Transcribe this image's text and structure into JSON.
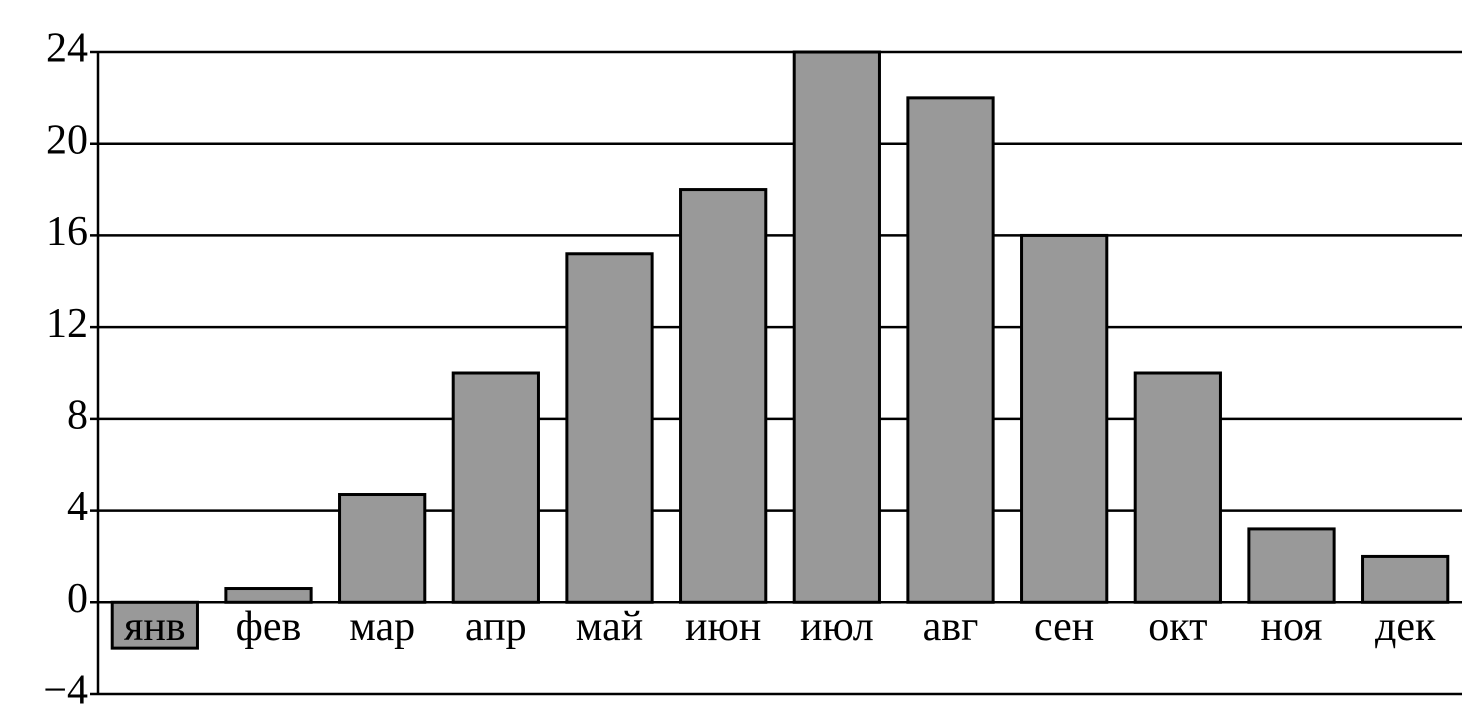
{
  "chart_data": {
    "type": "bar",
    "categories": [
      "янв",
      "фев",
      "мар",
      "апр",
      "май",
      "июн",
      "июл",
      "авг",
      "сен",
      "окт",
      "ноя",
      "дек"
    ],
    "values": [
      -2,
      0.6,
      4.7,
      10,
      15.2,
      18,
      24,
      22,
      16,
      10,
      3.2,
      2
    ],
    "color": "#999999",
    "ylim": [
      -4,
      24
    ],
    "yticks": [
      {
        "value": -4,
        "label": "−4"
      },
      0,
      4,
      8,
      12,
      16,
      20,
      24
    ],
    "grid": true
  }
}
